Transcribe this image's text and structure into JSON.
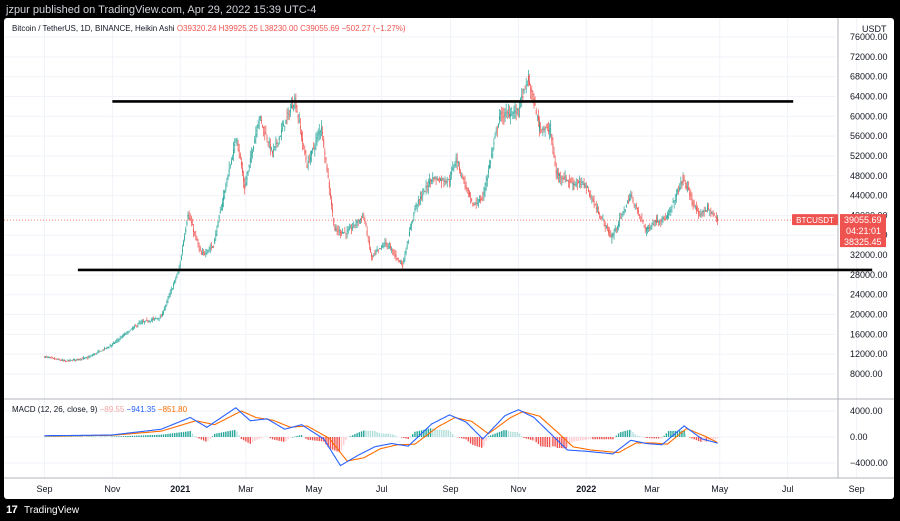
{
  "header": {
    "published": "jzpur published on TradingView.com, Apr 29, 2022 15:39 UTC-4"
  },
  "legend": {
    "symbol": "Bitcoin / TetherUS, 1D, BINANCE, Heikin Ashi",
    "O": "O39320.24",
    "H": "H39925.25",
    "L": "L38230.00",
    "C": "C39055.69",
    "change": "−502.27 (−1.27%)"
  },
  "macd_legend": {
    "name": "MACD (12, 26, close, 9)",
    "hist": "−89.55",
    "macd": "−941.35",
    "signal": "−851.80"
  },
  "price_axis": {
    "unit": "USDT"
  },
  "price_tag": {
    "label": "BTCUSDT",
    "price": "39055.69",
    "countdown": "04:21:01",
    "low": "38325.45"
  },
  "footer": {
    "logo": "17",
    "brand": "TradingView"
  },
  "colors": {
    "up": "#26a69a",
    "down": "#ef5350",
    "macd": "#2962ff",
    "signal": "#ff6d00"
  },
  "chart_data": [
    {
      "type": "line",
      "style": "heikin-ashi candles",
      "title": "Bitcoin / TetherUS, 1D, BINANCE, Heikin Ashi",
      "x_ticks": [
        "Sep",
        "Nov",
        "2021",
        "Mar",
        "May",
        "Jul",
        "Sep",
        "Nov",
        "2022",
        "Mar",
        "May",
        "Jul",
        "Sep"
      ],
      "y_ticks": [
        "76000.00",
        "72000.00",
        "68000.00",
        "64000.00",
        "60000.00",
        "56000.00",
        "52000.00",
        "48000.00",
        "44000.00",
        "40000.00",
        "36000.00",
        "32000.00",
        "28000.00",
        "24000.00",
        "20000.00",
        "16000.00",
        "12000.00",
        "8000.00"
      ],
      "ylim": [
        4000,
        77000
      ],
      "series": [
        {
          "values": [
            [
              "2020-09-01",
              11500
            ],
            [
              "2020-09-20",
              10600
            ],
            [
              "2020-10-10",
              11300
            ],
            [
              "2020-10-31",
              13800
            ],
            [
              "2020-11-25",
              18200
            ],
            [
              "2020-12-15",
              19500
            ],
            [
              "2020-12-31",
              29000
            ],
            [
              "2021-01-08",
              40500
            ],
            [
              "2021-01-20",
              32000
            ],
            [
              "2021-01-31",
              34000
            ],
            [
              "2021-02-12",
              47000
            ],
            [
              "2021-02-21",
              56000
            ],
            [
              "2021-02-28",
              45500
            ],
            [
              "2021-03-13",
              60000
            ],
            [
              "2021-03-25",
              52500
            ],
            [
              "2021-04-14",
              63500
            ],
            [
              "2021-04-25",
              50000
            ],
            [
              "2021-05-08",
              58000
            ],
            [
              "2021-05-20",
              37000
            ],
            [
              "2021-05-31",
              36500
            ],
            [
              "2021-06-15",
              40000
            ],
            [
              "2021-06-22",
              31500
            ],
            [
              "2021-07-05",
              34500
            ],
            [
              "2021-07-20",
              30000
            ],
            [
              "2021-07-31",
              41500
            ],
            [
              "2021-08-15",
              47500
            ],
            [
              "2021-08-31",
              47000
            ],
            [
              "2021-09-06",
              51500
            ],
            [
              "2021-09-21",
              42000
            ],
            [
              "2021-09-30",
              43500
            ],
            [
              "2021-10-15",
              60000
            ],
            [
              "2021-10-31",
              61000
            ],
            [
              "2021-11-10",
              67500
            ],
            [
              "2021-11-20",
              58000
            ],
            [
              "2021-11-30",
              57000
            ],
            [
              "2021-12-05",
              48500
            ],
            [
              "2021-12-20",
              46500
            ],
            [
              "2021-12-31",
              46300
            ],
            [
              "2022-01-10",
              41500
            ],
            [
              "2022-01-24",
              35500
            ],
            [
              "2022-02-10",
              44000
            ],
            [
              "2022-02-24",
              37000
            ],
            [
              "2022-03-05",
              39000
            ],
            [
              "2022-03-15",
              39500
            ],
            [
              "2022-03-29",
              47500
            ],
            [
              "2022-04-12",
              40000
            ],
            [
              "2022-04-20",
              41500
            ],
            [
              "2022-04-29",
              39055.69
            ]
          ]
        }
      ],
      "levels": [
        {
          "from": "2020-11-01",
          "to": "2022-07-06",
          "value": 63000
        },
        {
          "from": "2020-10-01",
          "to": "2022-09-15",
          "value": 29000
        }
      ],
      "current_price": 39055.69,
      "grid": true
    },
    {
      "type": "line",
      "title": "MACD (12, 26, close, 9)",
      "y_ticks": [
        "4000.00",
        "0.00",
        "−4000.00"
      ],
      "ylim": [
        -5000,
        5000
      ],
      "series": [
        {
          "name": "MACD",
          "values": [
            [
              "2020-09-01",
              200
            ],
            [
              "2020-10-31",
              300
            ],
            [
              "2020-12-15",
              1200
            ],
            [
              "2021-01-10",
              3000
            ],
            [
              "2021-01-25",
              1500
            ],
            [
              "2021-02-20",
              4500
            ],
            [
              "2021-03-05",
              2500
            ],
            [
              "2021-03-20",
              2800
            ],
            [
              "2021-04-05",
              1200
            ],
            [
              "2021-04-20",
              1900
            ],
            [
              "2021-05-10",
              -300
            ],
            [
              "2021-05-25",
              -4400
            ],
            [
              "2021-06-10",
              -2800
            ],
            [
              "2021-06-25",
              -1500
            ],
            [
              "2021-07-10",
              -1000
            ],
            [
              "2021-07-25",
              -1400
            ],
            [
              "2021-08-15",
              2000
            ],
            [
              "2021-08-31",
              3400
            ],
            [
              "2021-09-15",
              2300
            ],
            [
              "2021-09-30",
              -300
            ],
            [
              "2021-10-20",
              3300
            ],
            [
              "2021-11-01",
              4200
            ],
            [
              "2021-11-15",
              3000
            ],
            [
              "2021-11-30",
              500
            ],
            [
              "2021-12-15",
              -2000
            ],
            [
              "2022-01-01",
              -2200
            ],
            [
              "2022-01-25",
              -2600
            ],
            [
              "2022-02-10",
              -500
            ],
            [
              "2022-02-24",
              -1000
            ],
            [
              "2022-03-10",
              -1200
            ],
            [
              "2022-03-30",
              1700
            ],
            [
              "2022-04-15",
              -300
            ],
            [
              "2022-04-29",
              -941.35
            ]
          ]
        },
        {
          "name": "Signal",
          "values": [
            [
              "2020-09-01",
              150
            ],
            [
              "2020-10-31",
              250
            ],
            [
              "2020-12-15",
              900
            ],
            [
              "2021-01-15",
              2500
            ],
            [
              "2021-02-01",
              1900
            ],
            [
              "2021-02-25",
              4000
            ],
            [
              "2021-03-10",
              3000
            ],
            [
              "2021-03-25",
              2600
            ],
            [
              "2021-04-10",
              1500
            ],
            [
              "2021-04-25",
              1700
            ],
            [
              "2021-05-15",
              -200
            ],
            [
              "2021-05-31",
              -3700
            ],
            [
              "2021-06-15",
              -3200
            ],
            [
              "2021-06-30",
              -1800
            ],
            [
              "2021-07-15",
              -1200
            ],
            [
              "2021-07-31",
              -1100
            ],
            [
              "2021-08-20",
              1500
            ],
            [
              "2021-09-05",
              3000
            ],
            [
              "2021-09-20",
              2400
            ],
            [
              "2021-10-05",
              500
            ],
            [
              "2021-10-25",
              3000
            ],
            [
              "2021-11-05",
              3900
            ],
            [
              "2021-11-20",
              3200
            ],
            [
              "2021-12-05",
              900
            ],
            [
              "2021-12-20",
              -1500
            ],
            [
              "2022-01-05",
              -2000
            ],
            [
              "2022-01-30",
              -2400
            ],
            [
              "2022-02-15",
              -900
            ],
            [
              "2022-03-01",
              -900
            ],
            [
              "2022-03-15",
              -1100
            ],
            [
              "2022-04-01",
              1300
            ],
            [
              "2022-04-18",
              100
            ],
            [
              "2022-04-29",
              -851.8
            ]
          ]
        }
      ],
      "histogram": {
        "last": -89.55
      }
    }
  ]
}
